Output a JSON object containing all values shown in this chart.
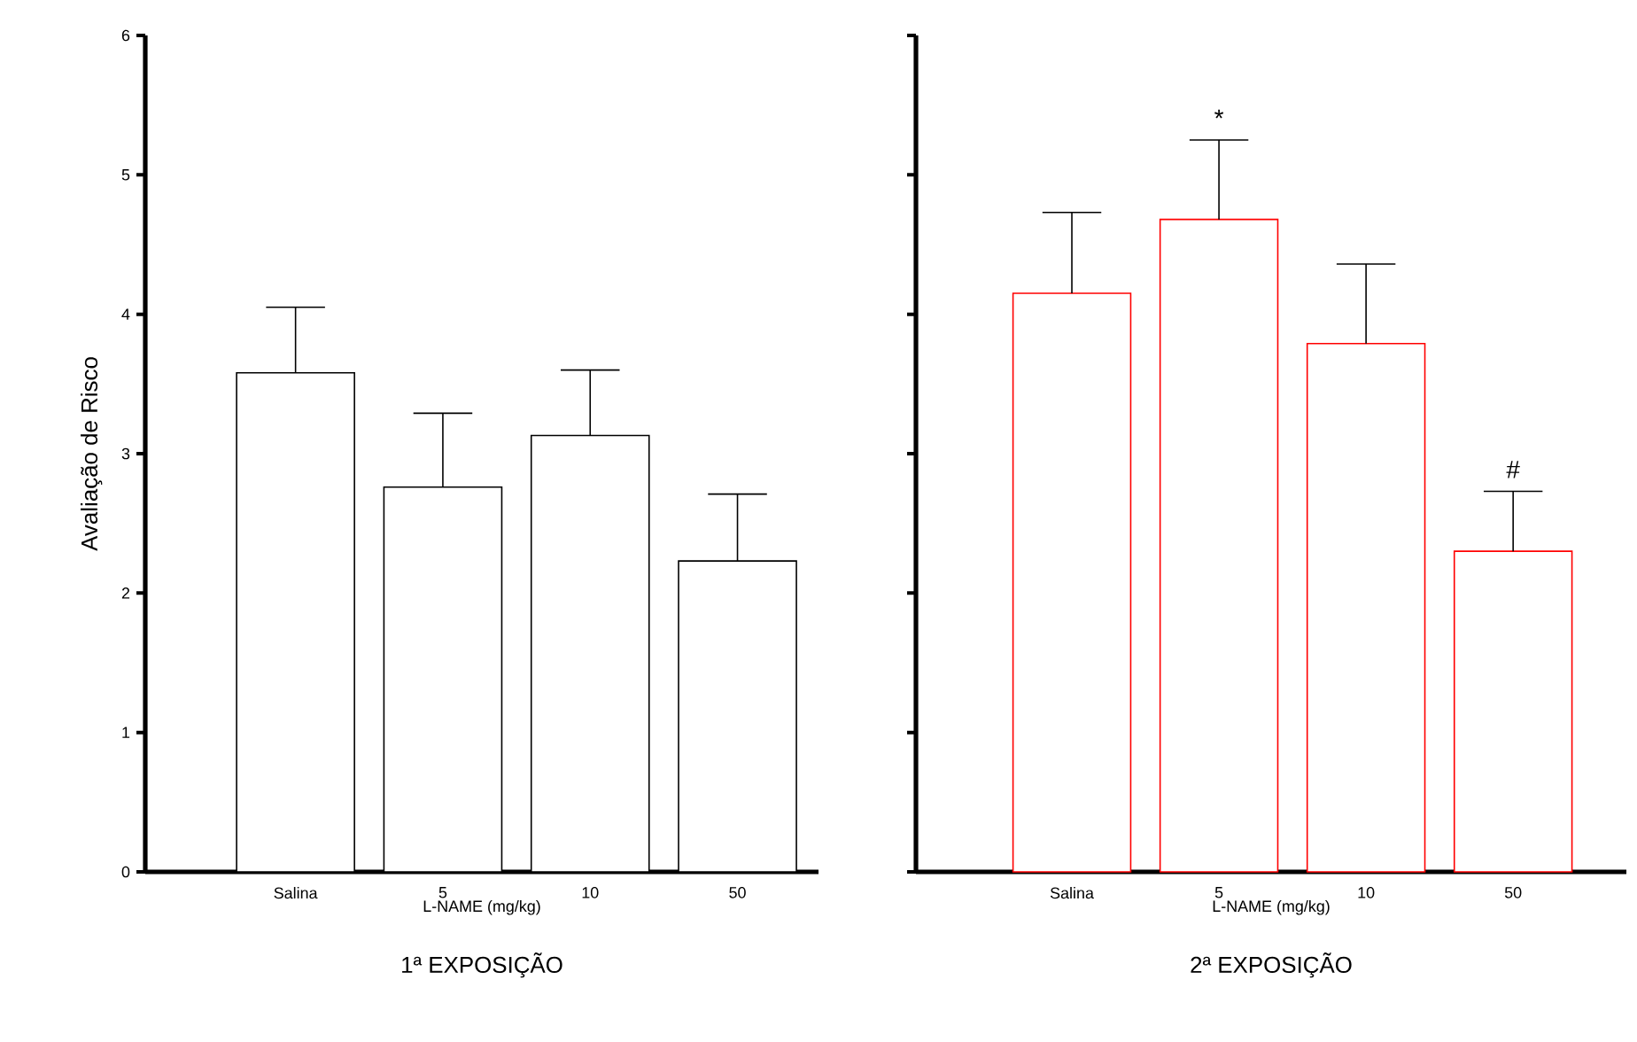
{
  "chart_data": [
    {
      "type": "bar",
      "title": "1ª EXPOSIÇÃO",
      "xlabel": "L-NAME (mg/kg)",
      "ylabel": "Avaliação de Risco",
      "categories": [
        "Salina",
        "5",
        "10",
        "50"
      ],
      "values": [
        3.58,
        2.76,
        3.13,
        2.23
      ],
      "color": "#000000",
      "errors": [
        [
          3.58,
          4.05
        ],
        [
          2.76,
          3.29
        ],
        [
          3.13,
          3.6
        ],
        [
          2.23,
          2.71
        ]
      ],
      "ylim": [
        0,
        6
      ],
      "yticks": [
        0,
        1,
        2,
        3,
        4,
        5,
        6
      ],
      "grid": false
    },
    {
      "type": "bar",
      "title": "2ª EXPOSIÇÃO",
      "xlabel": "L-NAME (mg/kg)",
      "categories": [
        "Salina",
        "5",
        "10",
        "50"
      ],
      "values": [
        4.15,
        4.68,
        3.79,
        2.3
      ],
      "color": "#ff0000",
      "errors": [
        [
          4.15,
          4.73
        ],
        [
          4.68,
          5.25
        ],
        [
          3.79,
          4.36
        ],
        [
          2.3,
          2.73
        ]
      ],
      "ylim": [
        0,
        6
      ],
      "yticks": [
        0,
        1,
        2,
        3,
        4,
        5,
        6
      ],
      "tick_labels": "x",
      "grid": false,
      "annotations": [
        {
          "text": "*",
          "x": "5",
          "y": 5.25
        },
        {
          "text": "#",
          "x": "50",
          "y": 2.73
        }
      ]
    }
  ]
}
